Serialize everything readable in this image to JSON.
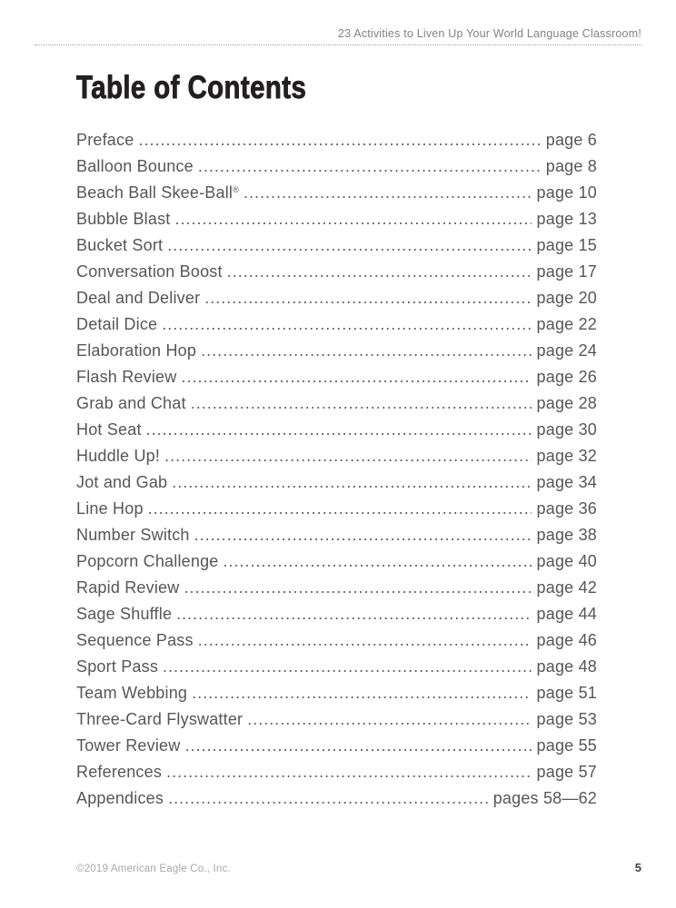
{
  "header": {
    "running_title": "23 Activities to Liven Up Your World Language Classroom!"
  },
  "title": "Table of Contents",
  "toc": {
    "entries": [
      {
        "label": "Preface",
        "page": "page 6"
      },
      {
        "label": "Balloon Bounce",
        "page": "page 8"
      },
      {
        "label": "Beach Ball Skee-Ball",
        "sup": "®",
        "page": "page 10"
      },
      {
        "label": "Bubble Blast",
        "page": "page 13"
      },
      {
        "label": "Bucket Sort",
        "page": "page 15"
      },
      {
        "label": "Conversation Boost",
        "page": "page 17"
      },
      {
        "label": "Deal and Deliver",
        "page": "page 20"
      },
      {
        "label": "Detail Dice",
        "page": "page 22"
      },
      {
        "label": "Elaboration Hop",
        "page": "page 24"
      },
      {
        "label": "Flash Review",
        "page": "page 26"
      },
      {
        "label": "Grab and Chat",
        "page": "page 28"
      },
      {
        "label": "Hot Seat",
        "page": "page 30"
      },
      {
        "label": "Huddle Up!",
        "page": "page 32"
      },
      {
        "label": "Jot and Gab",
        "page": "page 34"
      },
      {
        "label": "Line Hop",
        "page": "page 36"
      },
      {
        "label": "Number Switch",
        "page": "page 38"
      },
      {
        "label": "Popcorn Challenge",
        "page": "page 40"
      },
      {
        "label": "Rapid Review",
        "page": "page 42"
      },
      {
        "label": "Sage Shuffle",
        "page": "page 44"
      },
      {
        "label": "Sequence Pass",
        "page": "page 46"
      },
      {
        "label": "Sport Pass",
        "page": "page 48"
      },
      {
        "label": "Team Webbing",
        "page": "page 51"
      },
      {
        "label": "Three-Card Flyswatter",
        "page": "page 53"
      },
      {
        "label": "Tower Review",
        "page": "page 55"
      },
      {
        "label": "References",
        "page": "page 57"
      },
      {
        "label": "Appendices",
        "page": "pages 58—62"
      }
    ]
  },
  "footer": {
    "copyright": "©2019 American Eagle Co., Inc.",
    "page_number": "5"
  },
  "colors": {
    "entry_text": "#54565a",
    "title_text": "#231f20",
    "running_head_text": "#808285",
    "dotted_rule": "#9d9fa2",
    "copyright_text": "#a7a9ac",
    "page_number_text": "#414042",
    "background": "#ffffff"
  }
}
